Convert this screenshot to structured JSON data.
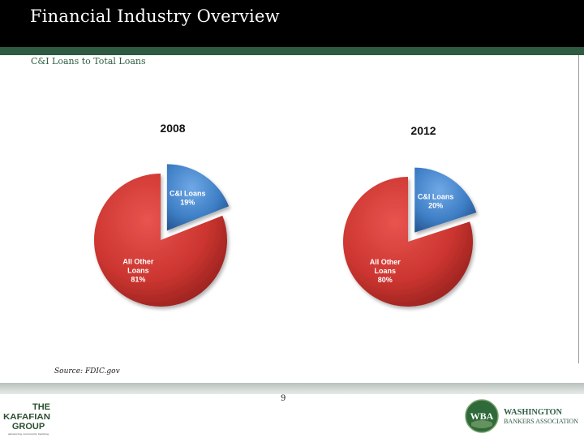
{
  "header": {
    "title": "Financial Industry Overview",
    "subtitle": "C&I Loans to Total Loans"
  },
  "chart_data": [
    {
      "type": "pie",
      "title": "2008",
      "categories": [
        "C&I Loans",
        "All Other Loans"
      ],
      "values": [
        19,
        81
      ],
      "data_labels": [
        "19%",
        "81%"
      ],
      "colors": [
        "#3f7fc6",
        "#c8302c"
      ],
      "exploded": "C&I Loans"
    },
    {
      "type": "pie",
      "title": "2012",
      "categories": [
        "C&I Loans",
        "All Other Loans"
      ],
      "values": [
        20,
        80
      ],
      "data_labels": [
        "20%",
        "80%"
      ],
      "colors": [
        "#3f7fc6",
        "#c8302c"
      ],
      "exploded": "C&I Loans"
    }
  ],
  "footer": {
    "source": "Source: FDIC.gov",
    "page_number": "9",
    "left_logo_text": [
      "THE",
      "KAFAFIAN",
      "GROUP",
      "advancing community banking"
    ],
    "right_logo_mark": "WBA",
    "right_logo_text": [
      "WASHINGTON",
      "BANKERS ASSOCIATION"
    ]
  },
  "colors": {
    "title_bar": "#000000",
    "accent_green": "#2e5a41",
    "subtitle_text": "#2f5e44"
  }
}
